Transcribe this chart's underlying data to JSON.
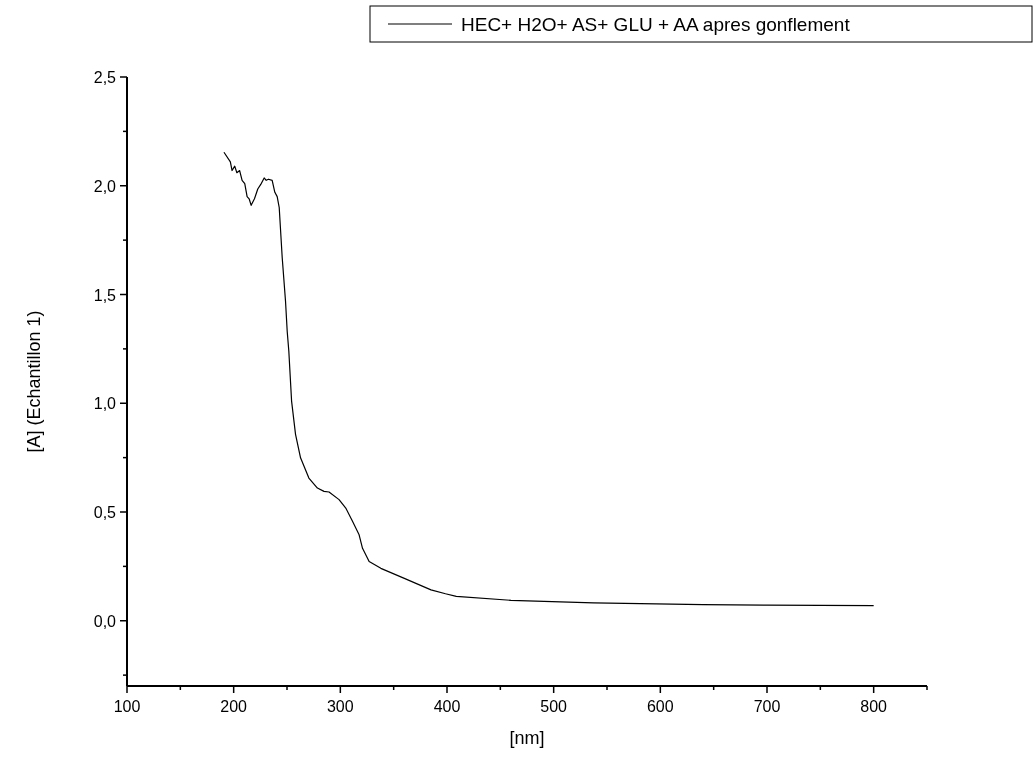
{
  "chart_data": {
    "type": "line",
    "xlabel": "[nm]",
    "ylabel": "[A] (Echantillon 1)",
    "xlim": [
      100,
      850
    ],
    "ylim": [
      -0.3,
      2.5
    ],
    "xticks": [
      100,
      {
        "value": 150,
        "label": null
      },
      200,
      {
        "value": 250,
        "label": null
      },
      300,
      {
        "value": 350,
        "label": null
      },
      400,
      {
        "value": 450,
        "label": null
      },
      500,
      {
        "value": 550,
        "label": null
      },
      600,
      {
        "value": 650,
        "label": null
      },
      700,
      {
        "value": 750,
        "label": null
      },
      800,
      {
        "value": 850,
        "label": null
      }
    ],
    "yticks": [
      {
        "value": -0.25,
        "label": null
      },
      {
        "value": 0,
        "label": "0,0"
      },
      {
        "value": 0.25,
        "label": null
      },
      {
        "value": 0.5,
        "label": "0,5"
      },
      {
        "value": 0.75,
        "label": null
      },
      {
        "value": 1,
        "label": "1,0"
      },
      {
        "value": 1.25,
        "label": null
      },
      {
        "value": 1.5,
        "label": "1,5"
      },
      {
        "value": 1.75,
        "label": null
      },
      {
        "value": 2,
        "label": "2,0"
      },
      {
        "value": 2.25,
        "label": null
      },
      {
        "value": 2.5,
        "label": "2,5"
      }
    ],
    "grid": false,
    "legend": "top right",
    "line_style": "solid",
    "marker": "none",
    "series": [
      {
        "name": "HEC+ H2O+ AS+ GLU + AA apres gonflement",
        "color": "#000000",
        "x": [
          190.9,
          196.9,
          198.5,
          201,
          203,
          205.6,
          207.9,
          210.4,
          212.6,
          214.5,
          216.4,
          219.5,
          222.6,
          225.4,
          228.6,
          230.5,
          232.6,
          236.1,
          238.6,
          240.8,
          242.7,
          245.5,
          248.6,
          250.2,
          251.7,
          254.3,
          258,
          262.7,
          270.5,
          278.5,
          284.7,
          289.4,
          298.8,
          305.1,
          311.4,
          317.6,
          320.8,
          327,
          338,
          360,
          385,
          398.6,
          408.7,
          460,
          537.3,
          640,
          700,
          800
        ],
        "values": [
          2.154,
          2.11,
          2.07,
          2.09,
          2.06,
          2.07,
          2.025,
          2.01,
          1.95,
          1.94,
          1.91,
          1.94,
          1.985,
          2.006,
          2.036,
          2.025,
          2.03,
          2.025,
          1.97,
          1.95,
          1.9,
          1.67,
          1.47,
          1.33,
          1.24,
          1.01,
          0.857,
          0.749,
          0.656,
          0.61,
          0.595,
          0.592,
          0.557,
          0.518,
          0.457,
          0.395,
          0.333,
          0.272,
          0.241,
          0.195,
          0.142,
          0.124,
          0.112,
          0.094,
          0.082,
          0.074,
          0.072,
          0.07
        ]
      }
    ]
  }
}
